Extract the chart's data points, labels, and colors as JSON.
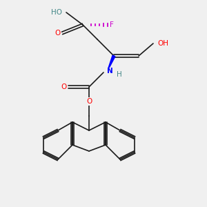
{
  "bg_color": "#f0f0f0",
  "bond_color": "#1a1a1a",
  "atom_colors": {
    "O": "#ff0000",
    "N": "#0000ff",
    "F": "#cc00cc",
    "H": "#448888",
    "C": "#1a1a1a"
  },
  "title": ""
}
